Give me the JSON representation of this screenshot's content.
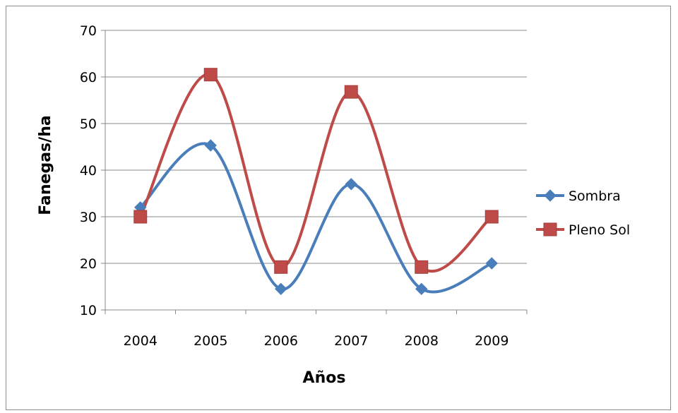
{
  "chart_data": {
    "type": "line",
    "smooth": true,
    "title": "",
    "xlabel": "Años",
    "ylabel": "Fanegas/ha",
    "categories": [
      "2004",
      "2005",
      "2006",
      "2007",
      "2008",
      "2009"
    ],
    "ylim": [
      10,
      70
    ],
    "yticks": [
      "10",
      "20",
      "30",
      "40",
      "50",
      "60",
      "70"
    ],
    "grid": true,
    "legend_position": "right",
    "series": [
      {
        "name": "Sombra",
        "values": [
          32,
          45.3,
          14.5,
          37,
          14.5,
          20
        ],
        "color": "#4a7ebb",
        "marker": "diamond"
      },
      {
        "name": "Pleno Sol",
        "values": [
          30,
          60.5,
          19.2,
          56.8,
          19.2,
          30
        ],
        "color": "#be4b48",
        "marker": "square"
      }
    ]
  }
}
